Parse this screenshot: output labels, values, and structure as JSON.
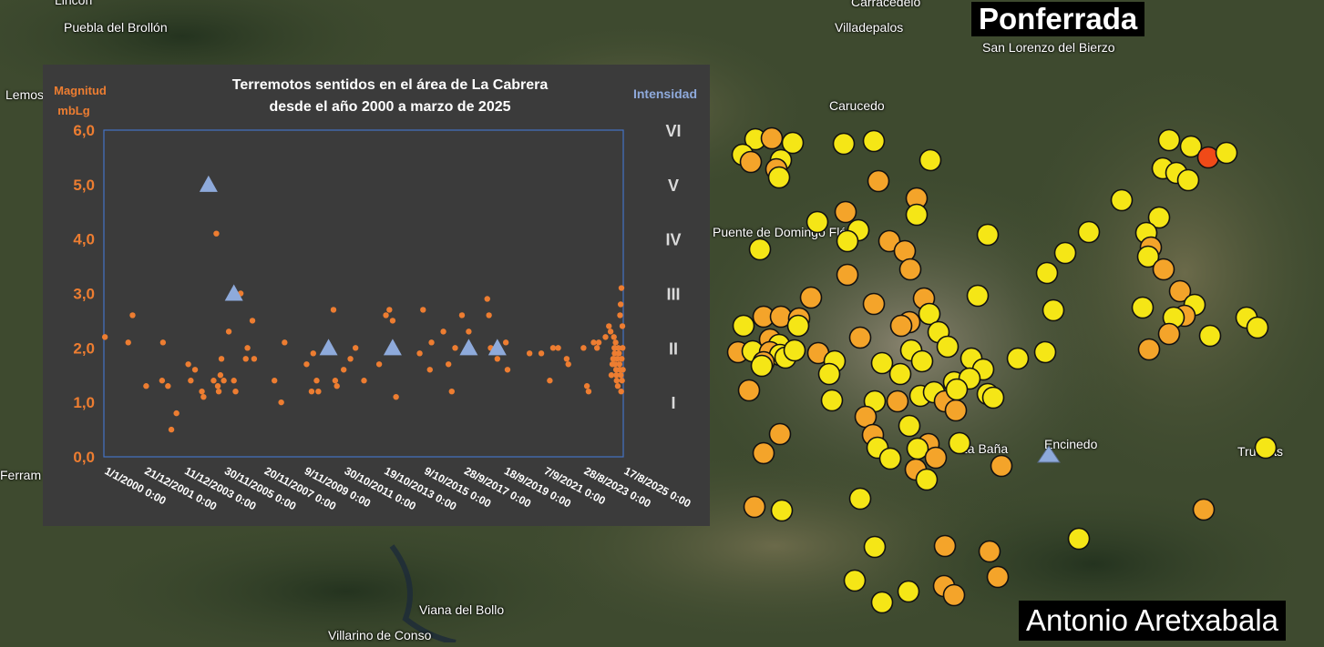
{
  "map": {
    "badge_title": "Ponferrada",
    "author": "Antonio Aretxabala",
    "places": [
      "Puebla del Brollón",
      "Villadepalos",
      "Carracedelo",
      "San Lorenzo del Bierzo",
      "Carucedo",
      "Lemos",
      "Puente de Domingo Flórez",
      "La Baña",
      "Encinedo",
      "Truchas",
      "Viana del Bollo",
      "Villarino de Conso",
      "Ferram",
      "Lincón"
    ],
    "colors": {
      "yellow": "#f5e616",
      "orange": "#f4a42a",
      "red": "#f04a18",
      "triangle": "#8eaadb"
    }
  },
  "chart_data": {
    "type": "scatter",
    "title_line1": "Terremotos sentidos en el área de La Cabrera",
    "title_line2": "desde el año 2000 a marzo de 2025",
    "ylabel_line1": "Magnitud",
    "ylabel_line2": "mbLg",
    "y2label": "Intensidad",
    "ylim": [
      0,
      6
    ],
    "yticks": [
      "0,0",
      "1,0",
      "2,0",
      "3,0",
      "4,0",
      "5,0",
      "6,0"
    ],
    "intensity_ticks": [
      "VI",
      "V",
      "IV",
      "III",
      "II",
      "I"
    ],
    "xlim": [
      "2000-01-01",
      "2025-08-17"
    ],
    "xticks": [
      "1/1/2000 0:00",
      "21/12/2001 0:00",
      "11/12/2003 0:00",
      "30/11/2005 0:00",
      "20/11/2007 0:00",
      "9/11/2009 0:00",
      "30/10/2011 0:00",
      "19/10/2013 0:00",
      "9/10/2015 0:00",
      "28/9/2017 0:00",
      "18/9/2019 0:00",
      "7/9/2021 0:00",
      "28/8/2023 0:00",
      "17/8/2025 0:00"
    ],
    "colors": {
      "magnitude": "#ed7d31",
      "intensity": "#8eaadb"
    },
    "series": [
      {
        "values": [
          [
            "2000-01-20",
            2.2
          ],
          [
            "2001-03-15",
            2.1
          ],
          [
            "2001-06-01",
            2.6
          ],
          [
            "2002-02-01",
            1.3
          ],
          [
            "2002-12-01",
            2.1
          ],
          [
            "2002-11-15",
            1.4
          ],
          [
            "2003-03-01",
            1.3
          ],
          [
            "2003-05-01",
            0.5
          ],
          [
            "2003-08-01",
            0.8
          ],
          [
            "2004-03-01",
            1.7
          ],
          [
            "2004-04-15",
            1.4
          ],
          [
            "2004-07-01",
            1.6
          ],
          [
            "2004-11-01",
            1.2
          ],
          [
            "2004-12-01",
            1.1
          ],
          [
            "2005-06-01",
            1.4
          ],
          [
            "2005-08-15",
            1.3
          ],
          [
            "2005-09-01",
            1.2
          ],
          [
            "2005-07-20",
            4.1
          ],
          [
            "2005-10-01",
            1.5
          ],
          [
            "2005-10-20",
            1.8
          ],
          [
            "2005-12-01",
            1.4
          ],
          [
            "2006-03-01",
            2.3
          ],
          [
            "2006-06-01",
            1.4
          ],
          [
            "2006-07-01",
            1.2
          ],
          [
            "2006-10-01",
            3.0
          ],
          [
            "2007-01-01",
            1.8
          ],
          [
            "2007-02-01",
            2.0
          ],
          [
            "2007-05-01",
            2.5
          ],
          [
            "2007-06-01",
            1.8
          ],
          [
            "2008-06-01",
            1.4
          ],
          [
            "2008-10-01",
            1.0
          ],
          [
            "2008-12-01",
            2.1
          ],
          [
            "2010-01-01",
            1.7
          ],
          [
            "2010-04-01",
            1.2
          ],
          [
            "2010-05-01",
            1.9
          ],
          [
            "2010-07-01",
            1.4
          ],
          [
            "2010-08-01",
            1.2
          ],
          [
            "2011-03-01",
            2.0
          ],
          [
            "2011-05-01",
            2.7
          ],
          [
            "2011-06-01",
            1.4
          ],
          [
            "2011-07-01",
            1.3
          ],
          [
            "2011-11-01",
            1.6
          ],
          [
            "2012-03-01",
            1.8
          ],
          [
            "2012-06-01",
            2.0
          ],
          [
            "2012-11-01",
            1.4
          ],
          [
            "2013-08-01",
            1.7
          ],
          [
            "2013-12-01",
            2.6
          ],
          [
            "2014-02-01",
            2.7
          ],
          [
            "2014-04-01",
            2.5
          ],
          [
            "2014-06-01",
            1.1
          ],
          [
            "2015-08-01",
            1.9
          ],
          [
            "2015-10-01",
            2.7
          ],
          [
            "2016-02-01",
            1.6
          ],
          [
            "2016-03-01",
            2.1
          ],
          [
            "2016-10-01",
            2.3
          ],
          [
            "2017-01-01",
            1.7
          ],
          [
            "2017-03-01",
            1.2
          ],
          [
            "2017-05-01",
            2.0
          ],
          [
            "2017-09-01",
            2.6
          ],
          [
            "2018-01-01",
            2.3
          ],
          [
            "2018-12-01",
            2.9
          ],
          [
            "2019-01-01",
            2.6
          ],
          [
            "2019-02-01",
            2.0
          ],
          [
            "2019-06-01",
            1.8
          ],
          [
            "2019-11-01",
            2.1
          ],
          [
            "2019-12-01",
            1.6
          ],
          [
            "2021-01-01",
            1.9
          ],
          [
            "2021-08-01",
            1.9
          ],
          [
            "2022-01-01",
            1.4
          ],
          [
            "2022-03-01",
            2.0
          ],
          [
            "2022-06-01",
            2.0
          ],
          [
            "2022-11-01",
            1.8
          ],
          [
            "2022-12-01",
            1.7
          ],
          [
            "2023-09-01",
            2.0
          ],
          [
            "2023-11-01",
            1.3
          ],
          [
            "2023-12-01",
            1.2
          ],
          [
            "2024-03-01",
            2.1
          ],
          [
            "2024-05-01",
            2.0
          ],
          [
            "2024-06-01",
            2.1
          ],
          [
            "2024-10-01",
            2.2
          ],
          [
            "2024-12-01",
            2.4
          ],
          [
            "2025-01-01",
            2.3
          ],
          [
            "2025-01-15",
            1.5
          ],
          [
            "2025-02-01",
            1.7
          ],
          [
            "2025-02-15",
            1.8
          ],
          [
            "2025-03-01",
            2.2
          ],
          [
            "2025-03-10",
            2.0
          ],
          [
            "2025-03-15",
            1.9
          ],
          [
            "2025-03-20",
            1.7
          ],
          [
            "2025-04-01",
            2.1
          ],
          [
            "2025-04-10",
            1.6
          ],
          [
            "2025-04-15",
            1.5
          ],
          [
            "2025-04-20",
            1.4
          ],
          [
            "2025-05-01",
            1.8
          ],
          [
            "2025-05-10",
            1.3
          ],
          [
            "2025-05-20",
            2.0
          ],
          [
            "2025-06-01",
            1.9
          ],
          [
            "2025-06-10",
            1.7
          ],
          [
            "2025-06-15",
            1.6
          ],
          [
            "2025-06-20",
            2.6
          ],
          [
            "2025-07-01",
            2.8
          ],
          [
            "2025-07-05",
            1.5
          ],
          [
            "2025-07-10",
            1.2
          ],
          [
            "2025-07-15",
            3.1
          ],
          [
            "2025-07-20",
            1.8
          ],
          [
            "2025-07-25",
            1.4
          ],
          [
            "2025-08-01",
            2.4
          ],
          [
            "2025-08-05",
            2.0
          ],
          [
            "2025-08-10",
            1.6
          ]
        ]
      },
      {
        "marker": "triangle",
        "values": [
          [
            "2005-03-01",
            5.0
          ],
          [
            "2006-06-01",
            3.0
          ],
          [
            "2011-02-01",
            2.0
          ],
          [
            "2014-04-01",
            2.0
          ],
          [
            "2018-01-01",
            2.0
          ],
          [
            "2019-06-01",
            2.0
          ]
        ]
      }
    ]
  }
}
